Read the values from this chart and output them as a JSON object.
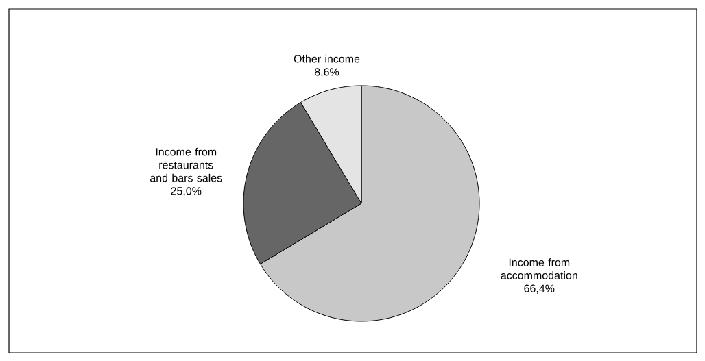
{
  "chart_data": {
    "type": "pie",
    "categories": [
      "Income from accommodation",
      "Income from restaurants and bars sales",
      "Other income"
    ],
    "values": [
      66.4,
      25.0,
      8.6
    ],
    "value_labels": [
      "66,4%",
      "25,0%",
      "8,6%"
    ],
    "colors": [
      "#c8c8c8",
      "#666666",
      "#e4e4e4"
    ]
  }
}
